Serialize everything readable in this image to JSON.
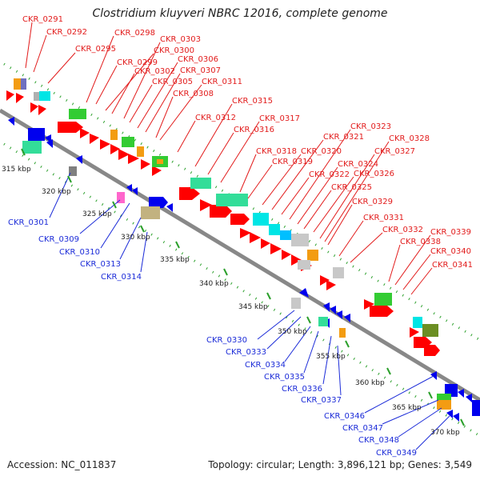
{
  "title": "Clostridium kluyveri NBRC 12016, complete genome",
  "footer": {
    "accession": "Accession: NC_011837",
    "topology": "Topology: circular; Length: 3,896,121 bp; Genes: 3,549"
  },
  "colors": {
    "forward_label": "#e21b1b",
    "reverse_label": "#1b2bd8",
    "forward_cds": "#ff0000",
    "reverse_cds": "#0000ee",
    "backbone": "#888888",
    "tick_dots": "#2ca02c"
  },
  "forward_genes": [
    "CKR_0291",
    "CKR_0292",
    "CKR_0295",
    "CKR_0298",
    "CKR_0299",
    "CKR_0300",
    "CKR_0302",
    "CKR_0303",
    "CKR_0305",
    "CKR_0306",
    "CKR_0307",
    "CKR_0308",
    "CKR_0311",
    "CKR_0312",
    "CKR_0315",
    "CKR_0316",
    "CKR_0317",
    "CKR_0318",
    "CKR_0319",
    "CKR_0320",
    "CKR_0321",
    "CKR_0322",
    "CKR_0323",
    "CKR_0324",
    "CKR_0325",
    "CKR_0326",
    "CKR_0327",
    "CKR_0328",
    "CKR_0329",
    "CKR_0331",
    "CKR_0332",
    "CKR_0338",
    "CKR_0339",
    "CKR_0340",
    "CKR_0341"
  ],
  "reverse_genes": [
    "CKR_0301",
    "CKR_0309",
    "CKR_0310",
    "CKR_0313",
    "CKR_0314",
    "CKR_0330",
    "CKR_0333",
    "CKR_0334",
    "CKR_0335",
    "CKR_0336",
    "CKR_0337",
    "CKR_0346",
    "CKR_0347",
    "CKR_0348",
    "CKR_0349"
  ],
  "position_labels": [
    "315 kbp",
    "320 kbp",
    "325 kbp",
    "330 kbp",
    "335 kbp",
    "340 kbp",
    "345 kbp",
    "350 kbp",
    "355 kbp",
    "360 kbp",
    "365 kbp",
    "370 kbp"
  ]
}
